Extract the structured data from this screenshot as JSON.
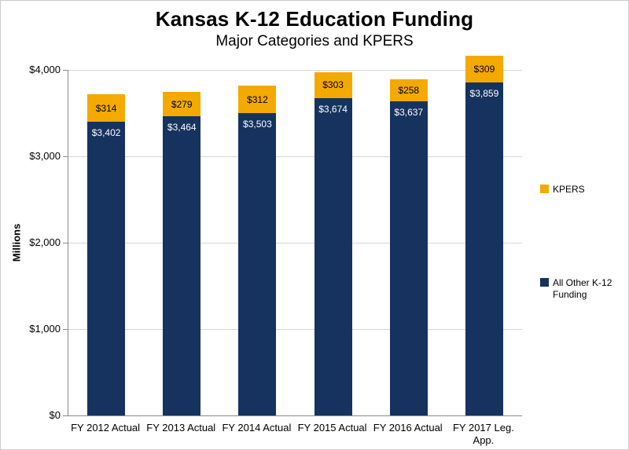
{
  "chart_data": {
    "type": "bar",
    "stacked": true,
    "title": "Kansas K-12 Education Funding",
    "subtitle": "Major Categories and KPERS",
    "ylabel": "Millions",
    "ylim": [
      0,
      4000
    ],
    "ytick_values": [
      0,
      1000,
      2000,
      3000,
      4000
    ],
    "ytick_labels": [
      "$0",
      "$1,000",
      "$2,000",
      "$3,000",
      "$4,000"
    ],
    "categories": [
      "FY 2012 Actual",
      "FY 2013 Actual",
      "FY 2014 Actual",
      "FY 2015 Actual",
      "FY 2016 Actual",
      "FY 2017 Leg. App."
    ],
    "series": [
      {
        "name": "All Other K-12 Funding",
        "color": "#16325f",
        "label_color": "#ffffff",
        "values": [
          3402,
          3464,
          3503,
          3674,
          3637,
          3859
        ],
        "labels": [
          "$3,402",
          "$3,464",
          "$3,503",
          "$3,674",
          "$3,637",
          "$3,859"
        ]
      },
      {
        "name": "KPERS",
        "color": "#f3a900",
        "label_color": "#000000",
        "values": [
          314,
          279,
          312,
          303,
          258,
          309
        ],
        "labels": [
          "$314",
          "$279",
          "$312",
          "$303",
          "$258",
          "$309"
        ]
      }
    ],
    "legend_position": "right",
    "grid": true,
    "gridline_color": "#d6d6d6"
  }
}
